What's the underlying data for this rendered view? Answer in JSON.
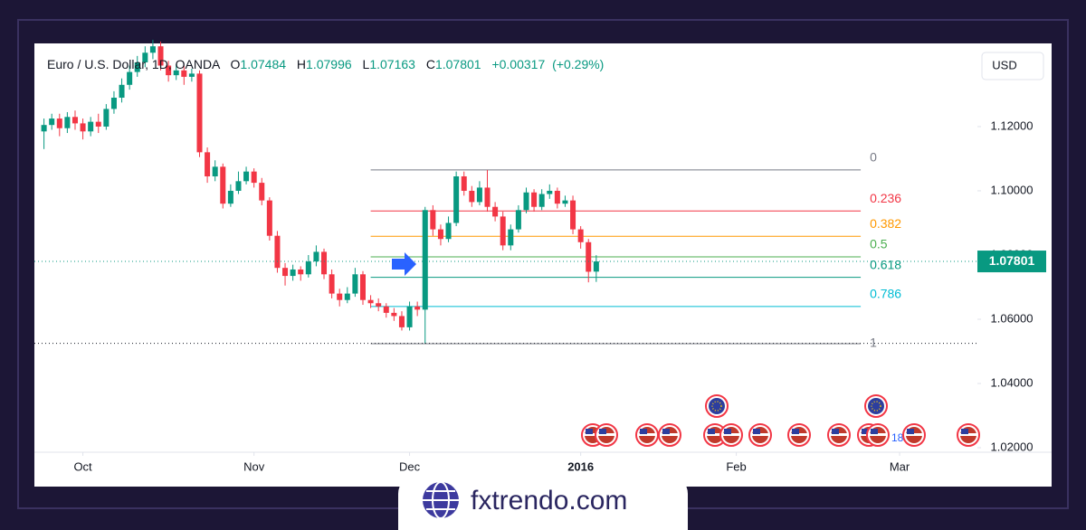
{
  "chart_data": {
    "type": "candlestick",
    "title": "Euro / U.S. Dollar, 1D, OANDA",
    "ohlc_prefixes": [
      "O",
      "H",
      "L",
      "C"
    ],
    "change": {
      "value": 0.00317,
      "label": "+0.00317"
    },
    "change_percent": {
      "value": 0.29,
      "label": "(+0.29%)"
    },
    "currency": "USD",
    "up_color": "#089981",
    "down_color": "#f23645",
    "open": [
      1.1185,
      1.1205,
      1.1225,
      1.1195,
      1.123,
      1.121,
      1.1185,
      1.1215,
      1.12,
      1.1255,
      1.129,
      1.133,
      1.137,
      1.14,
      1.143,
      1.145,
      1.139,
      1.136,
      1.1375,
      1.1355,
      1.1365,
      1.112,
      1.1045,
      1.1075,
      1.096,
      1.1,
      1.103,
      1.106,
      1.1025,
      1.097,
      1.086,
      1.076,
      1.0735,
      1.0755,
      1.074,
      1.078,
      1.081,
      1.074,
      1.068,
      1.066,
      1.068,
      1.074,
      1.066,
      1.065,
      1.064,
      1.062,
      1.061,
      1.0575,
      1.064,
      1.063,
      1.094,
      1.088,
      1.085,
      1.09,
      1.1045,
      1.1,
      1.0965,
      1.101,
      1.095,
      1.092,
      1.083,
      1.088,
      1.094,
      1.0995,
      1.095,
      1.099,
      1.1,
      1.096,
      1.097,
      1.088,
      1.084,
      1.07484
    ],
    "high": [
      1.1225,
      1.124,
      1.124,
      1.1245,
      1.125,
      1.1225,
      1.123,
      1.124,
      1.127,
      1.131,
      1.135,
      1.139,
      1.142,
      1.145,
      1.147,
      1.1465,
      1.1405,
      1.1395,
      1.139,
      1.138,
      1.1375,
      1.1135,
      1.1095,
      1.1085,
      1.102,
      1.106,
      1.1075,
      1.107,
      1.104,
      1.098,
      1.0875,
      1.0775,
      1.077,
      1.0765,
      1.08,
      1.083,
      1.082,
      1.0755,
      1.0695,
      1.07,
      1.076,
      1.075,
      1.0675,
      1.0665,
      1.065,
      1.0635,
      1.0625,
      1.0655,
      1.0655,
      1.095,
      1.0955,
      1.0895,
      1.092,
      1.106,
      1.106,
      1.1015,
      1.103,
      1.1065,
      1.0965,
      1.0935,
      1.0895,
      1.0955,
      1.101,
      1.1005,
      1.1005,
      1.102,
      1.101,
      1.0985,
      1.0985,
      1.089,
      1.085,
      1.07996
    ],
    "low": [
      1.113,
      1.119,
      1.117,
      1.118,
      1.119,
      1.116,
      1.117,
      1.118,
      1.119,
      1.124,
      1.1275,
      1.1315,
      1.1355,
      1.1385,
      1.141,
      1.1375,
      1.134,
      1.1345,
      1.133,
      1.134,
      1.1105,
      1.1025,
      1.103,
      1.0945,
      1.095,
      1.099,
      1.102,
      1.101,
      1.0955,
      1.0845,
      1.0745,
      1.0705,
      1.072,
      1.072,
      1.073,
      1.0765,
      1.0725,
      1.0665,
      1.064,
      1.065,
      1.067,
      1.0645,
      1.0635,
      1.0625,
      1.0605,
      1.0595,
      1.0565,
      1.0565,
      1.061,
      1.0525,
      1.086,
      1.083,
      1.084,
      1.089,
      1.0985,
      1.095,
      1.0955,
      1.0935,
      1.0905,
      1.0815,
      1.0815,
      1.087,
      1.093,
      1.0935,
      1.094,
      1.0975,
      1.0945,
      1.095,
      1.0865,
      1.082,
      1.0715,
      1.07163
    ],
    "close": [
      1.1205,
      1.1225,
      1.1195,
      1.123,
      1.121,
      1.1185,
      1.1215,
      1.12,
      1.1255,
      1.129,
      1.133,
      1.137,
      1.14,
      1.143,
      1.145,
      1.139,
      1.136,
      1.1375,
      1.1355,
      1.1365,
      1.112,
      1.1045,
      1.1075,
      1.096,
      1.1,
      1.103,
      1.106,
      1.1025,
      1.097,
      1.086,
      1.076,
      1.0735,
      1.0755,
      1.074,
      1.078,
      1.081,
      1.074,
      1.068,
      1.066,
      1.068,
      1.074,
      1.066,
      1.065,
      1.064,
      1.062,
      1.061,
      1.0575,
      1.064,
      1.063,
      1.094,
      1.088,
      1.085,
      1.09,
      1.1045,
      1.1,
      1.0965,
      1.101,
      1.095,
      1.092,
      1.083,
      1.088,
      1.094,
      1.0995,
      1.095,
      1.099,
      1.1,
      1.096,
      1.097,
      1.088,
      1.084,
      1.0748,
      1.07801
    ],
    "xlim": [
      -1,
      120
    ],
    "xticks": [
      {
        "value": 5,
        "label": "Oct"
      },
      {
        "value": 27,
        "label": "Nov"
      },
      {
        "value": 47,
        "label": "Dec"
      },
      {
        "value": 69,
        "label": "2016"
      },
      {
        "value": 89,
        "label": "Feb"
      },
      {
        "value": 110,
        "label": "Mar"
      }
    ],
    "ylim": [
      1.0186,
      1.1459
    ],
    "yticks": [
      {
        "value": 1.02,
        "label": "1.02000"
      },
      {
        "value": 1.04,
        "label": "1.04000"
      },
      {
        "value": 1.06,
        "label": "1.06000"
      },
      {
        "value": 1.08,
        "label": "1.08000"
      },
      {
        "value": 1.1,
        "label": "1.10000"
      },
      {
        "value": 1.12,
        "label": "1.12000"
      }
    ],
    "fibonacci": {
      "start_price": 1.1065,
      "end_price": 1.0524,
      "levels": [
        0,
        0.236,
        0.382,
        0.5,
        0.618,
        0.786,
        1
      ],
      "colors": [
        "#787b86",
        "#f23645",
        "#ff9800",
        "#4caf50",
        "#089981",
        "#00bcd4",
        "#787b86"
      ]
    },
    "event_note": "18"
  },
  "watermark": "fxtrendo.com"
}
